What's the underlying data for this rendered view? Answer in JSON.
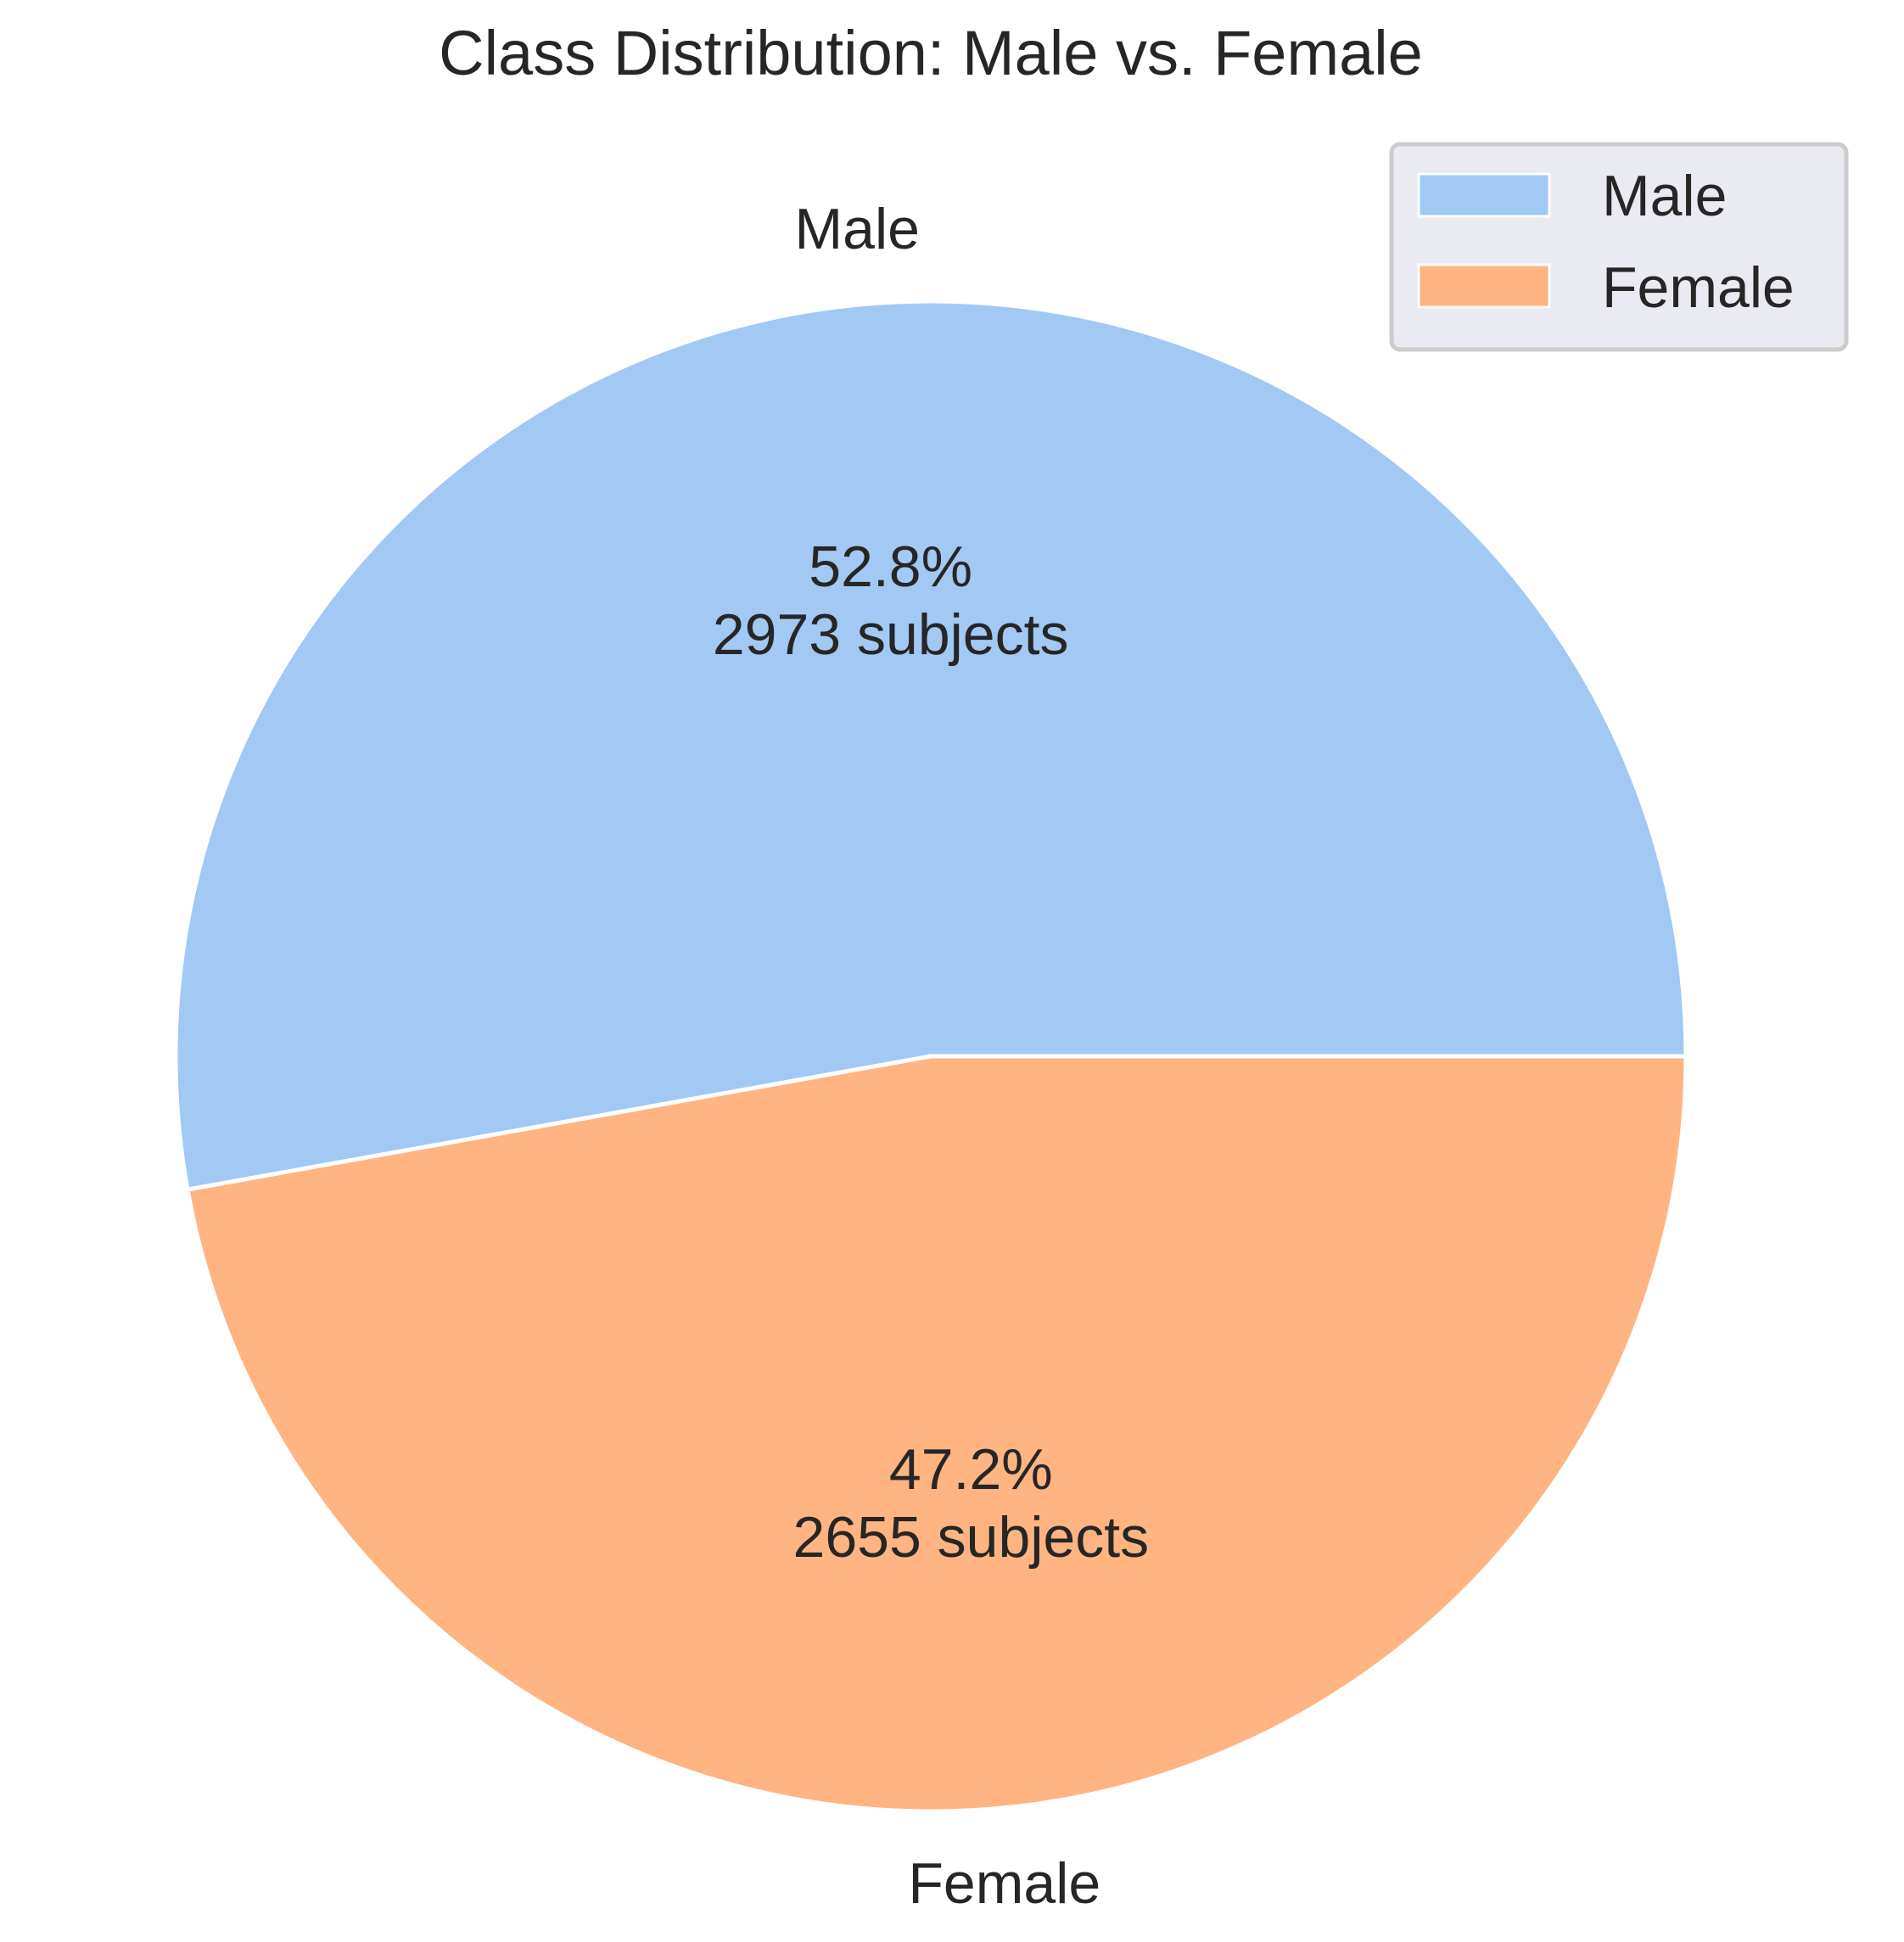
{
  "chart_data": {
    "type": "pie",
    "title": "Class Distribution: Male vs. Female",
    "categories": [
      "Male",
      "Female"
    ],
    "values": [
      2973,
      2655
    ],
    "percent_labels": [
      "52.8%",
      "47.2%"
    ],
    "count_labels": [
      "2973 subjects",
      "2655 subjects"
    ],
    "colors": [
      "#a1c9f4",
      "#ffb482"
    ],
    "start_angle_deg": 0,
    "direction": "counterclockwise",
    "legend": {
      "entries": [
        "Male",
        "Female"
      ],
      "placement": "top-right"
    }
  }
}
